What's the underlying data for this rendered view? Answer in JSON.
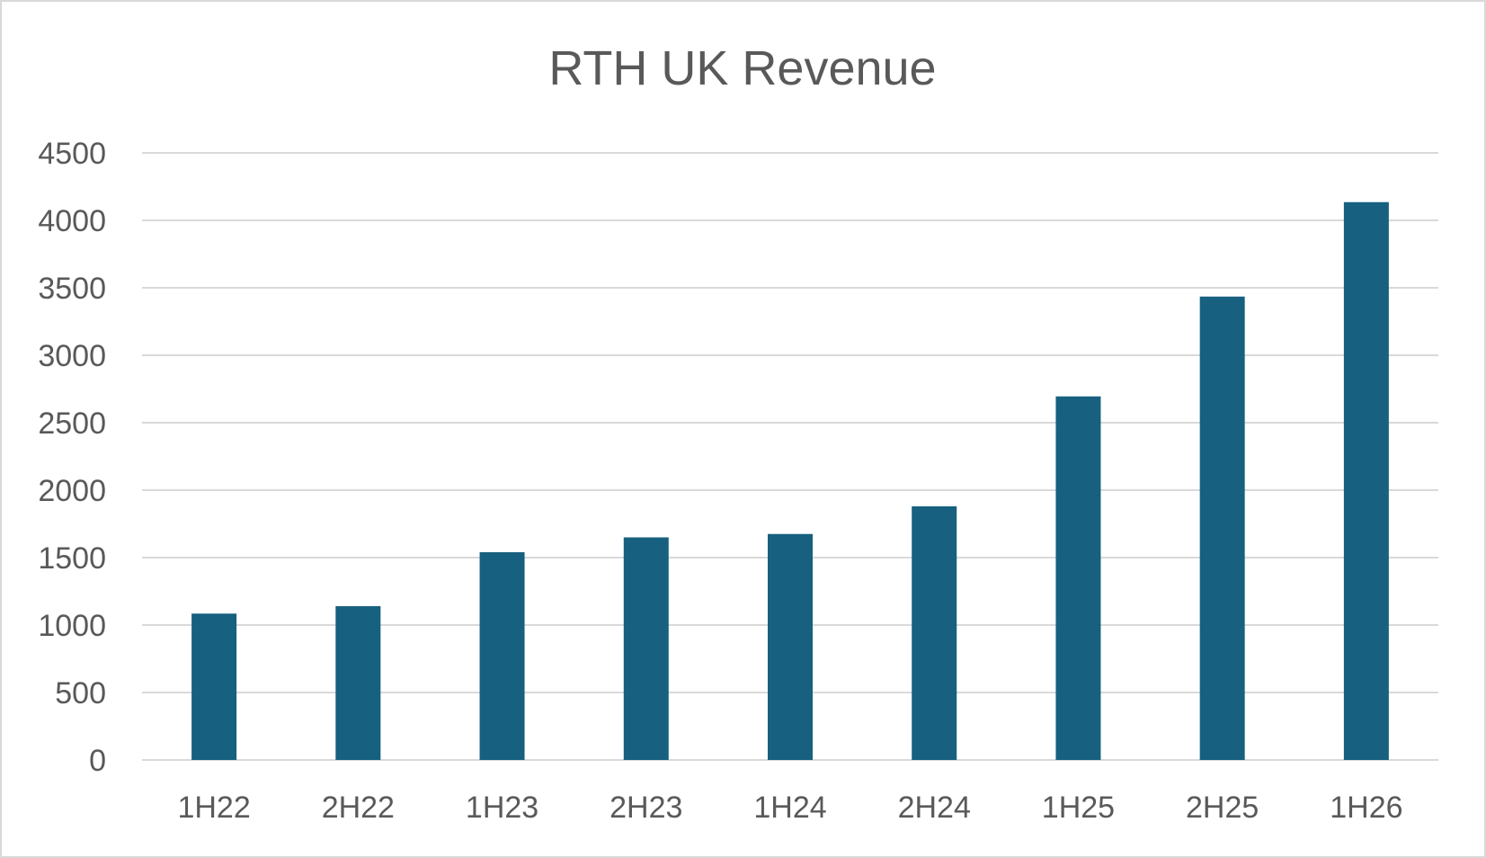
{
  "chart_data": {
    "type": "bar",
    "title": "RTH UK Revenue",
    "xlabel": "",
    "ylabel": "",
    "categories": [
      "1H22",
      "2H22",
      "1H23",
      "2H23",
      "1H24",
      "2H24",
      "1H25",
      "2H25",
      "1H26"
    ],
    "values": [
      1085,
      1140,
      1540,
      1650,
      1675,
      1880,
      2695,
      3435,
      4135
    ],
    "ylim": [
      0,
      4500
    ],
    "yticks": [
      "0",
      "500",
      "1000",
      "1500",
      "2000",
      "2500",
      "3000",
      "3500",
      "4000",
      "4500"
    ],
    "grid": true,
    "legend": "none",
    "bar_color": "#17607f",
    "grid_color": "#d9d9d9",
    "text_color": "#595959"
  }
}
